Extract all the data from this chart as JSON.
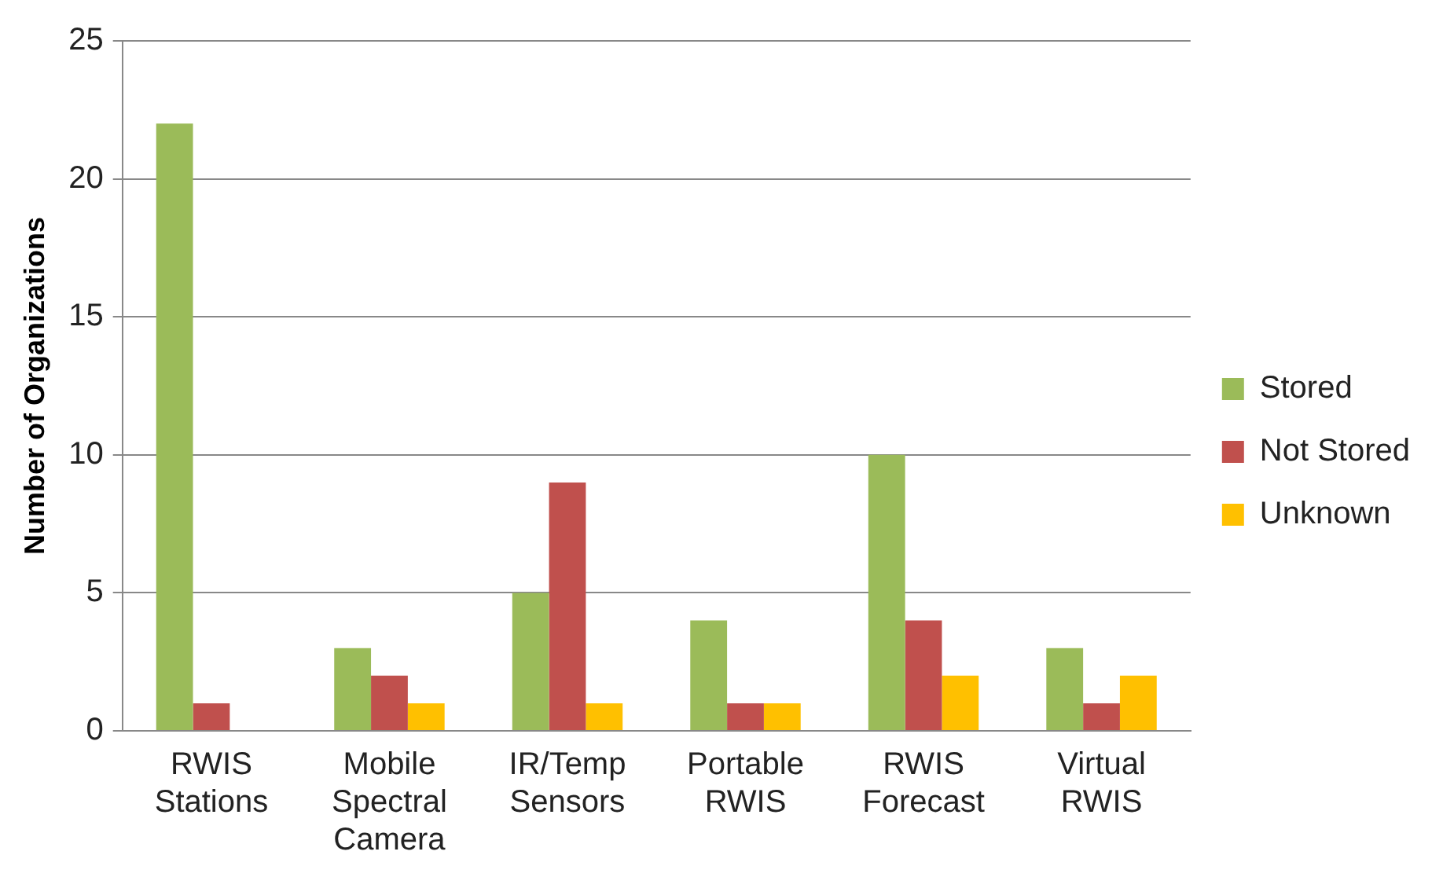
{
  "chart_data": {
    "type": "bar",
    "ylabel": "Number of Organizations",
    "categories": [
      "RWIS Stations",
      "Mobile Spectral Camera",
      "IR/Temp Sensors",
      "Portable RWIS",
      "RWIS Forecast",
      "Virtual RWIS"
    ],
    "series": [
      {
        "name": "Stored",
        "color": "#9bbb59",
        "values": [
          22,
          3,
          5,
          4,
          10,
          3
        ]
      },
      {
        "name": "Not Stored",
        "color": "#c0504d",
        "values": [
          1,
          2,
          9,
          1,
          4,
          1
        ]
      },
      {
        "name": "Unknown",
        "color": "#ffc000",
        "values": [
          0,
          1,
          1,
          1,
          2,
          2
        ]
      }
    ],
    "ylim": [
      0,
      25
    ],
    "yticks": [
      0,
      5,
      10,
      15,
      20,
      25
    ],
    "grid": "y",
    "legend": "right"
  }
}
